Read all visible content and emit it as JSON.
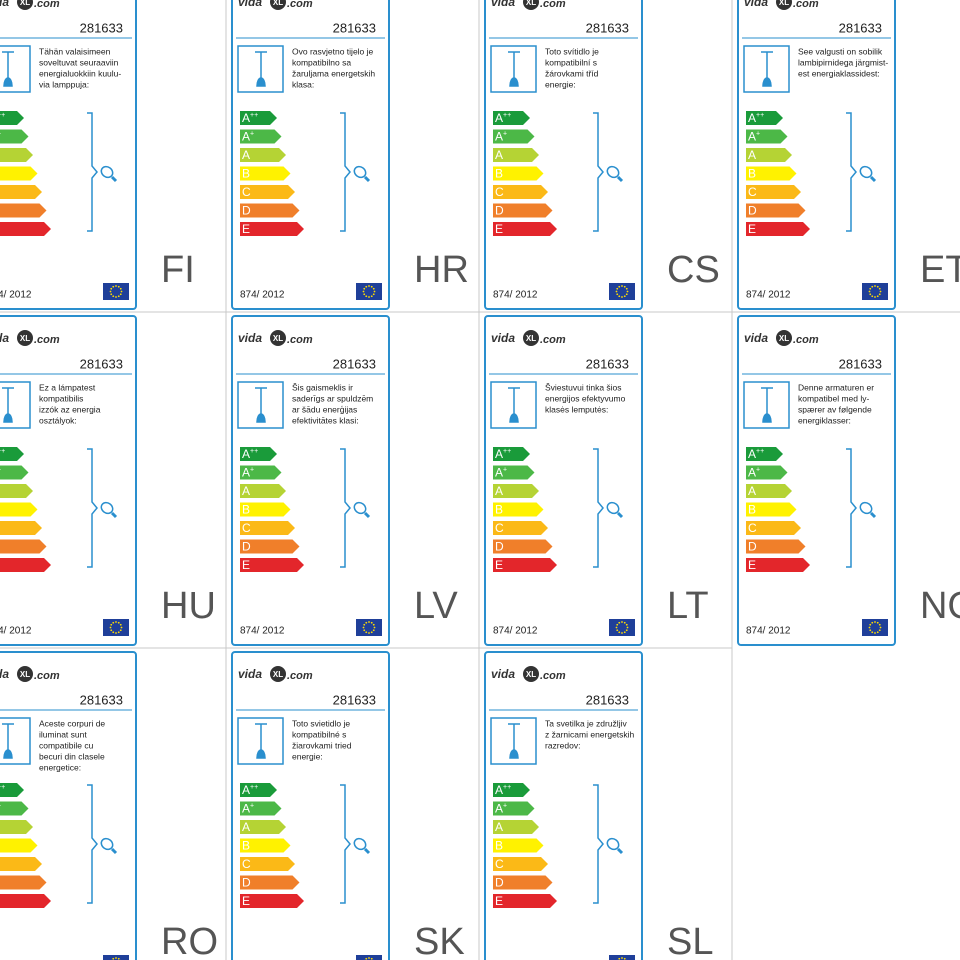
{
  "logo": {
    "left": "vida",
    "mid": "XL",
    "right": ".com"
  },
  "product_code": "281633",
  "regulation": "874/ 2012",
  "classes": [
    {
      "letter": "A",
      "sup": "++",
      "color": "#1a9b3a"
    },
    {
      "letter": "A",
      "sup": "+",
      "color": "#4cb847"
    },
    {
      "letter": "A",
      "color": "#b5d334"
    },
    {
      "letter": "B",
      "color": "#fff200"
    },
    {
      "letter": "C",
      "color": "#fbb917"
    },
    {
      "letter": "D",
      "color": "#f07f2a"
    },
    {
      "letter": "E",
      "color": "#e3262b"
    }
  ],
  "cells": [
    {
      "lang": "FI",
      "lines": [
        "Tähän valaisimeen",
        "soveltuvat seuraaviin",
        "energialuokkiin kuulu-",
        "via lamppuja:"
      ]
    },
    {
      "lang": "HR",
      "lines": [
        "Ovo rasvjetno tijelo je",
        "kompatibilno sa",
        "žaruljama energetskih",
        "klasa:"
      ]
    },
    {
      "lang": "CS",
      "lines": [
        "Toto svítidlo je",
        "kompatibilní s",
        "žárovkami tříd",
        "energie:"
      ]
    },
    {
      "lang": "ET",
      "lines": [
        "See valgusti on sobilik",
        "lambipirnidega järgmist-",
        "est energiaklassidest:"
      ]
    },
    {
      "lang": "HU",
      "lines": [
        "Ez a lámpatest",
        "kompatibilis",
        "izzók az energia",
        "osztályok:"
      ]
    },
    {
      "lang": "LV",
      "lines": [
        "Šis gaismeklis ir",
        "saderīgs ar spuldzēm",
        "ar šādu enerģijas",
        "efektivitātes klasi:"
      ]
    },
    {
      "lang": "LT",
      "lines": [
        "Šviestuvui tinka šios",
        "energijos efektyvumo",
        "klasės lemputės:"
      ]
    },
    {
      "lang": "NO",
      "lines": [
        "Denne armaturen er",
        "kompatibel med ly-",
        "spærer av følgende",
        "energiklasser:"
      ]
    },
    {
      "lang": "RO",
      "lines": [
        "Aceste corpuri de",
        "iluminat sunt",
        "compatibile cu",
        "becuri din clasele",
        "energetice:"
      ]
    },
    {
      "lang": "SK",
      "lines": [
        "Toto svietidlo je",
        "kompatibilné s",
        "žiarovkami tried",
        "energie:"
      ]
    },
    {
      "lang": "SL",
      "lines": [
        "Ta svetilka je združljiv",
        "z žarnicami energetskih",
        "razredov:"
      ]
    }
  ]
}
